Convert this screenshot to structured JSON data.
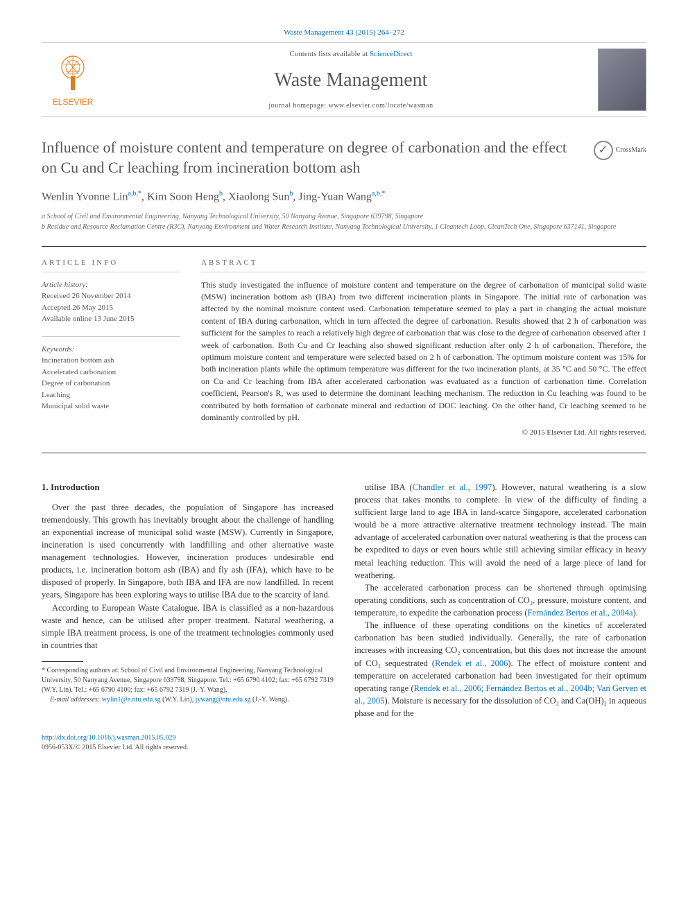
{
  "header": {
    "citation": "Waste Management 43 (2015) 264–272",
    "contents_line": "Contents lists available at",
    "contents_link": "ScienceDirect",
    "journal_name": "Waste Management",
    "homepage_label": "journal homepage: www.elsevier.com/locate/wasman",
    "publisher_logo_text": "ELSEVIER"
  },
  "crossmark": {
    "label": "CrossMark"
  },
  "article": {
    "title": "Influence of moisture content and temperature on degree of carbonation and the effect on Cu and Cr leaching from incineration bottom ash",
    "authors_html": "Wenlin Yvonne Lin<sup>a,b,*</sup>, Kim Soon Heng<sup>b</sup>, Xiaolong Sun<sup>b</sup>, Jing-Yuan Wang<sup>a,b,*</sup>",
    "affiliations": [
      "a School of Civil and Environmental Engineering, Nanyang Technological University, 50 Nanyang Avenue, Singapore 639798, Singapore",
      "b Residue and Resource Reclamation Centre (R3C), Nanyang Environment and Water Research Institute, Nanyang Technological University, 1 Cleantech Loop, CleanTech One, Singapore 637141, Singapore"
    ]
  },
  "article_info": {
    "heading": "ARTICLE INFO",
    "history_label": "Article history:",
    "history": [
      "Received 26 November 2014",
      "Accepted 26 May 2015",
      "Available online 13 June 2015"
    ],
    "keywords_label": "Keywords:",
    "keywords": [
      "Incineration bottom ash",
      "Accelerated carbonation",
      "Degree of carbonation",
      "Leaching",
      "Municipal solid waste"
    ]
  },
  "abstract": {
    "heading": "ABSTRACT",
    "text": "This study investigated the influence of moisture content and temperature on the degree of carbonation of municipal solid waste (MSW) incineration bottom ash (IBA) from two different incineration plants in Singapore. The initial rate of carbonation was affected by the nominal moisture content used. Carbonation temperature seemed to play a part in changing the actual moisture content of IBA during carbonation, which in turn affected the degree of carbonation. Results showed that 2 h of carbonation was sufficient for the samples to reach a relatively high degree of carbonation that was close to the degree of carbonation observed after 1 week of carbonation. Both Cu and Cr leaching also showed significant reduction after only 2 h of carbonation. Therefore, the optimum moisture content and temperature were selected based on 2 h of carbonation. The optimum moisture content was 15% for both incineration plants while the optimum temperature was different for the two incineration plants, at 35 °C and 50 °C. The effect on Cu and Cr leaching from IBA after accelerated carbonation was evaluated as a function of carbonation time. Correlation coefficient, Pearson's R, was used to determine the dominant leaching mechanism. The reduction in Cu leaching was found to be contributed by both formation of carbonate mineral and reduction of DOC leaching. On the other hand, Cr leaching seemed to be dominantly controlled by pH.",
    "copyright": "© 2015 Elsevier Ltd. All rights reserved."
  },
  "body": {
    "section1_heading": "1. Introduction",
    "p1": "Over the past three decades, the population of Singapore has increased tremendously. This growth has inevitably brought about the challenge of handling an exponential increase of municipal solid waste (MSW). Currently in Singapore, incineration is used concurrently with landfilling and other alternative waste management technologies. However, incineration produces undesirable end products, i.e. incineration bottom ash (IBA) and fly ash (IFA), which have to be disposed of properly. In Singapore, both IBA and IFA are now landfilled. In recent years, Singapore has been exploring ways to utilise IBA due to the scarcity of land.",
    "p2": "According to European Waste Catalogue, IBA is classified as a non-hazardous waste and hence, can be utilised after proper treatment. Natural weathering, a simple IBA treatment process, is one of the treatment technologies commonly used in countries that",
    "p3a": "utilise IBA (",
    "p3_ref1": "Chandler et al., 1997",
    "p3b": "). However, natural weathering is a slow process that takes months to complete. In view of the difficulty of finding a sufficient large land to age IBA in land-scarce Singapore, accelerated carbonation would be a more attractive alternative treatment technology instead. The main advantage of accelerated carbonation over natural weathering is that the process can be expedited to days or even hours while still achieving similar efficacy in heavy metal leaching reduction. This will avoid the need of a large piece of land for weathering.",
    "p4a": "The accelerated carbonation process can be shortened through optimising operating conditions, such as concentration of CO₂, pressure, moisture content, and temperature, to expedite the carbonation process (",
    "p4_ref1": "Fernández Bertos et al., 2004a",
    "p4b": ").",
    "p5a": "The influence of these operating conditions on the kinetics of accelerated carbonation has been studied individually. Generally, the rate of carbonation increases with increasing CO₂ concentration, but this does not increase the amount of CO₂ sequestrated (",
    "p5_ref1": "Rendek et al., 2006",
    "p5b": "). The effect of moisture content and temperature on accelerated carbonation had been investigated for their optimum operating range (",
    "p5_ref2": "Rendek et al., 2006; Fernández Bertos et al., 2004b; Van Gerven et al., 2005",
    "p5c": "). Moisture is necessary for the dissolution of CO₂ and Ca(OH)₂ in aqueous phase and for the"
  },
  "footnotes": {
    "corr": "* Corresponding authors at: School of Civil and Environmental Engineering, Nanyang Technological University, 50 Nanyang Avenue, Singapore 639798, Singapore. Tel.: +65 6790 4102; fax: +65 6792 7319 (W.Y. Lin). Tel.: +65 6790 4100; fax: +65 6792 7319 (J.-Y. Wang).",
    "email_label": "E-mail addresses:",
    "email1": "wylin1@e.ntu.edu.sg",
    "email1_who": " (W.Y. Lin), ",
    "email2": "jywang@ntu.edu.sg",
    "email2_who": " (J.-Y. Wang)."
  },
  "footer": {
    "doi": "http://dx.doi.org/10.1016/j.wasman.2015.05.029",
    "issn_line": "0956-053X/© 2015 Elsevier Ltd. All rights reserved."
  },
  "colors": {
    "link": "#0070c0",
    "publisher_orange": "#e67817",
    "text_gray": "#555555"
  }
}
